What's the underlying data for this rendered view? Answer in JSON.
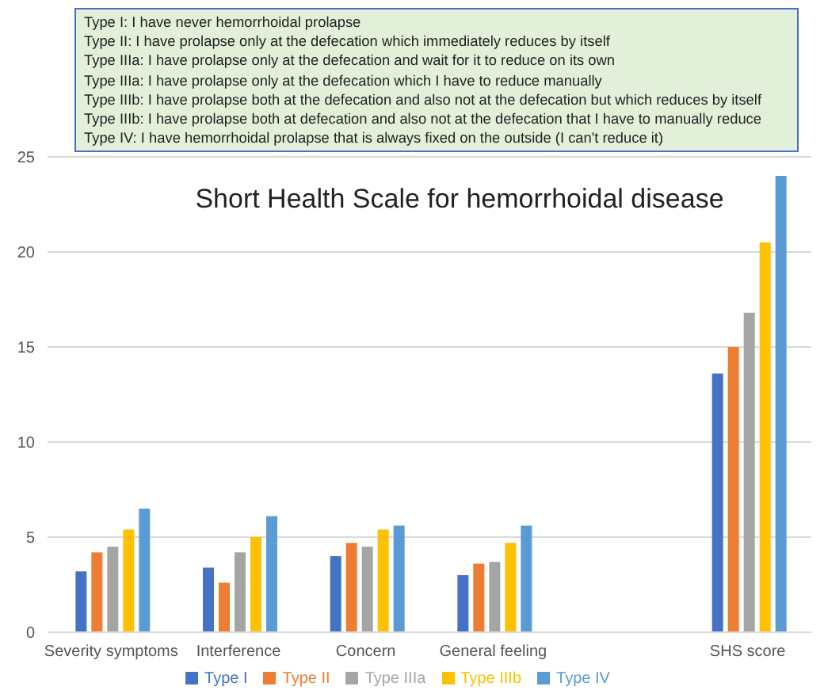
{
  "chart_data": {
    "type": "bar",
    "title": "Short Health Scale for hemorrhoidal disease",
    "annotations": [
      "Type I: I have never hemorrhoidal prolapse",
      "Type II: I have prolapse only at the defecation which immediately reduces by itself",
      "Type IIIa: I have prolapse only at the defecation and wait for it to reduce on its own",
      "Type IIIa: I have prolapse only at the defecation which I have to reduce manually",
      "Type IIIb: I have prolapse both at the defecation and also not at the defecation but which reduces by itself",
      "Type IIIb: I have prolapse both at defecation and also not at the defecation that I have to manually reduce",
      "Type IV: I have hemorrhoidal prolapse that is always fixed on the outside (I can't reduce it)"
    ],
    "categories": [
      "Severity symptoms",
      "Interference",
      "Concern",
      "General feeling",
      null,
      "SHS score"
    ],
    "series": [
      {
        "name": "Type I",
        "color": "#4472c4",
        "values": [
          3.2,
          3.4,
          4.0,
          3.0,
          null,
          13.6
        ]
      },
      {
        "name": "Type II",
        "color": "#ed7d31",
        "values": [
          4.2,
          2.6,
          4.7,
          3.6,
          null,
          15.0
        ]
      },
      {
        "name": "Type IIIa",
        "color": "#a5a5a5",
        "values": [
          4.5,
          4.2,
          4.5,
          3.7,
          null,
          16.8
        ]
      },
      {
        "name": "Type IIIb",
        "color": "#ffc000",
        "values": [
          5.4,
          5.0,
          5.4,
          4.7,
          null,
          20.5
        ]
      },
      {
        "name": "Type IV",
        "color": "#5b9bd5",
        "values": [
          6.5,
          6.1,
          5.6,
          5.6,
          null,
          24.0
        ]
      }
    ],
    "ylim": [
      0,
      25
    ],
    "yticks": [
      0,
      5,
      10,
      15,
      20,
      25
    ],
    "grid": "y",
    "legend": "bottom"
  }
}
